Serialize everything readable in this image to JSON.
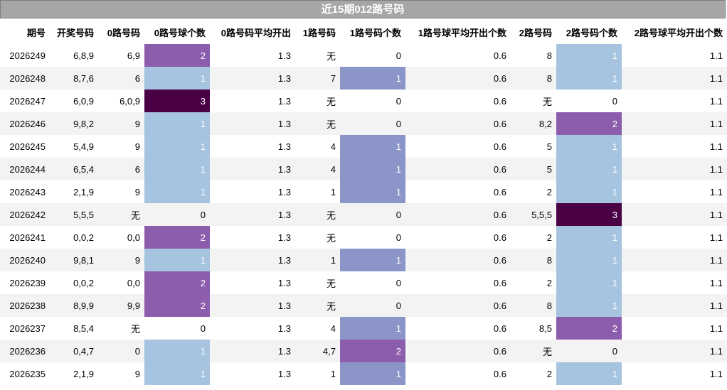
{
  "title": "近15期012路号码",
  "headers": [
    "期号",
    "开奖号码",
    "0路号码",
    "0路号球个数",
    "0路号码平均开出",
    "1路号码",
    "1路号码个数",
    "1路号球平均开出个数",
    "2路号码",
    "2路号码个数",
    "2路号球平均开出个数"
  ],
  "rows": [
    [
      "2026249",
      "6,8,9",
      "6,9",
      "2",
      "1.3",
      "无",
      "0",
      "0.6",
      "8",
      "1",
      "1.1"
    ],
    [
      "2026248",
      "8,7,6",
      "6",
      "1",
      "1.3",
      "7",
      "1",
      "0.6",
      "8",
      "1",
      "1.1"
    ],
    [
      "2026247",
      "6,0,9",
      "6,0,9",
      "3",
      "1.3",
      "无",
      "0",
      "0.6",
      "无",
      "0",
      "1.1"
    ],
    [
      "2026246",
      "9,8,2",
      "9",
      "1",
      "1.3",
      "无",
      "0",
      "0.6",
      "8,2",
      "2",
      "1.1"
    ],
    [
      "2026245",
      "5,4,9",
      "9",
      "1",
      "1.3",
      "4",
      "1",
      "0.6",
      "5",
      "1",
      "1.1"
    ],
    [
      "2026244",
      "6,5,4",
      "6",
      "1",
      "1.3",
      "4",
      "1",
      "0.6",
      "5",
      "1",
      "1.1"
    ],
    [
      "2026243",
      "2,1,9",
      "9",
      "1",
      "1.3",
      "1",
      "1",
      "0.6",
      "2",
      "1",
      "1.1"
    ],
    [
      "2026242",
      "5,5,5",
      "无",
      "0",
      "1.3",
      "无",
      "0",
      "0.6",
      "5,5,5",
      "3",
      "1.1"
    ],
    [
      "2026241",
      "0,0,2",
      "0,0",
      "2",
      "1.3",
      "无",
      "0",
      "0.6",
      "2",
      "1",
      "1.1"
    ],
    [
      "2026240",
      "9,8,1",
      "9",
      "1",
      "1.3",
      "1",
      "1",
      "0.6",
      "8",
      "1",
      "1.1"
    ],
    [
      "2026239",
      "0,0,2",
      "0,0",
      "2",
      "1.3",
      "无",
      "0",
      "0.6",
      "2",
      "1",
      "1.1"
    ],
    [
      "2026238",
      "8,9,9",
      "9,9",
      "2",
      "1.3",
      "无",
      "0",
      "0.6",
      "8",
      "1",
      "1.1"
    ],
    [
      "2026237",
      "8,5,4",
      "无",
      "0",
      "1.3",
      "4",
      "1",
      "0.6",
      "8,5",
      "2",
      "1.1"
    ],
    [
      "2026236",
      "0,4,7",
      "0",
      "1",
      "1.3",
      "4,7",
      "2",
      "0.6",
      "无",
      "0",
      "1.1"
    ],
    [
      "2026235",
      "2,1,9",
      "9",
      "1",
      "1.3",
      "1",
      "1",
      "0.6",
      "2",
      "1",
      "1.1"
    ]
  ],
  "colors": {
    "count_1": "#a6c3e0",
    "count_1_route1": "#8c95c8",
    "count_2": "#8c5cad",
    "count_3": "#4a0045",
    "title_bg": "#a6a6a6"
  }
}
